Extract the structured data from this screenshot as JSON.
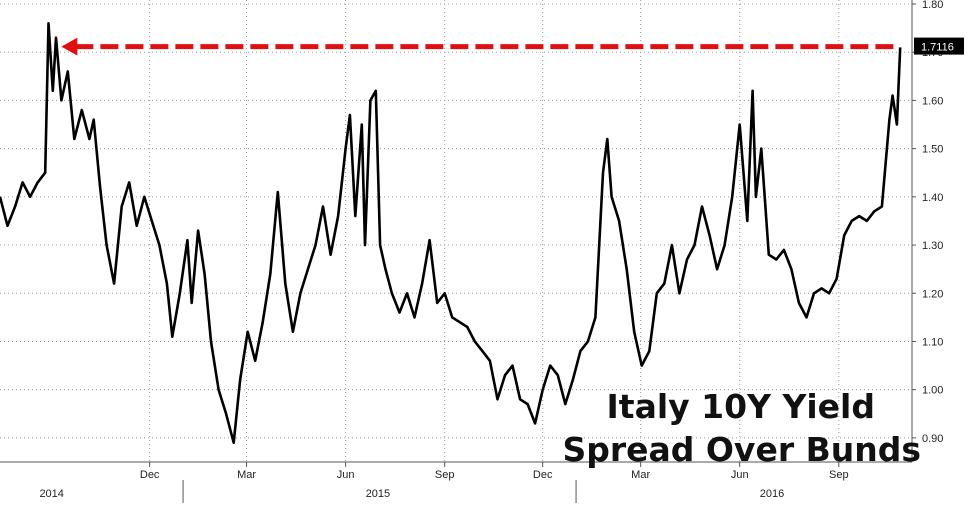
{
  "chart_data": {
    "type": "line",
    "series": [
      {
        "values": [
          [
            "2014-07-15",
            1.4
          ],
          [
            "2014-07-22",
            1.34
          ],
          [
            "2014-07-29",
            1.38
          ],
          [
            "2014-08-05",
            1.43
          ],
          [
            "2014-08-12",
            1.4
          ],
          [
            "2014-08-19",
            1.43
          ],
          [
            "2014-08-26",
            1.45
          ],
          [
            "2014-08-29",
            1.76
          ],
          [
            "2014-09-02",
            1.62
          ],
          [
            "2014-09-05",
            1.73
          ],
          [
            "2014-09-10",
            1.6
          ],
          [
            "2014-09-16",
            1.66
          ],
          [
            "2014-09-22",
            1.52
          ],
          [
            "2014-09-29",
            1.58
          ],
          [
            "2014-10-06",
            1.52
          ],
          [
            "2014-10-10",
            1.56
          ],
          [
            "2014-10-16",
            1.42
          ],
          [
            "2014-10-22",
            1.3
          ],
          [
            "2014-10-29",
            1.22
          ],
          [
            "2014-11-05",
            1.38
          ],
          [
            "2014-11-12",
            1.43
          ],
          [
            "2014-11-19",
            1.34
          ],
          [
            "2014-11-26",
            1.4
          ],
          [
            "2014-12-03",
            1.35
          ],
          [
            "2014-12-10",
            1.3
          ],
          [
            "2014-12-17",
            1.22
          ],
          [
            "2014-12-22",
            1.11
          ],
          [
            "2014-12-29",
            1.2
          ],
          [
            "2015-01-05",
            1.31
          ],
          [
            "2015-01-09",
            1.18
          ],
          [
            "2015-01-15",
            1.33
          ],
          [
            "2015-01-21",
            1.24
          ],
          [
            "2015-01-27",
            1.1
          ],
          [
            "2015-02-03",
            1.0
          ],
          [
            "2015-02-10",
            0.95
          ],
          [
            "2015-02-17",
            0.89
          ],
          [
            "2015-02-23",
            1.02
          ],
          [
            "2015-03-02",
            1.12
          ],
          [
            "2015-03-09",
            1.06
          ],
          [
            "2015-03-16",
            1.14
          ],
          [
            "2015-03-23",
            1.24
          ],
          [
            "2015-03-30",
            1.41
          ],
          [
            "2015-04-06",
            1.22
          ],
          [
            "2015-04-13",
            1.12
          ],
          [
            "2015-04-20",
            1.2
          ],
          [
            "2015-04-27",
            1.25
          ],
          [
            "2015-05-04",
            1.3
          ],
          [
            "2015-05-11",
            1.38
          ],
          [
            "2015-05-18",
            1.28
          ],
          [
            "2015-05-25",
            1.36
          ],
          [
            "2015-06-01",
            1.5
          ],
          [
            "2015-06-05",
            1.57
          ],
          [
            "2015-06-10",
            1.36
          ],
          [
            "2015-06-16",
            1.55
          ],
          [
            "2015-06-19",
            1.3
          ],
          [
            "2015-06-24",
            1.6
          ],
          [
            "2015-06-29",
            1.62
          ],
          [
            "2015-07-03",
            1.3
          ],
          [
            "2015-07-08",
            1.25
          ],
          [
            "2015-07-14",
            1.2
          ],
          [
            "2015-07-21",
            1.16
          ],
          [
            "2015-07-28",
            1.2
          ],
          [
            "2015-08-04",
            1.15
          ],
          [
            "2015-08-11",
            1.22
          ],
          [
            "2015-08-18",
            1.31
          ],
          [
            "2015-08-25",
            1.18
          ],
          [
            "2015-09-01",
            1.2
          ],
          [
            "2015-09-08",
            1.15
          ],
          [
            "2015-09-15",
            1.14
          ],
          [
            "2015-09-22",
            1.13
          ],
          [
            "2015-09-29",
            1.1
          ],
          [
            "2015-10-06",
            1.08
          ],
          [
            "2015-10-13",
            1.06
          ],
          [
            "2015-10-20",
            0.98
          ],
          [
            "2015-10-27",
            1.03
          ],
          [
            "2015-11-03",
            1.05
          ],
          [
            "2015-11-10",
            0.98
          ],
          [
            "2015-11-17",
            0.97
          ],
          [
            "2015-11-24",
            0.93
          ],
          [
            "2015-12-01",
            1.0
          ],
          [
            "2015-12-08",
            1.05
          ],
          [
            "2015-12-15",
            1.03
          ],
          [
            "2015-12-22",
            0.97
          ],
          [
            "2015-12-29",
            1.02
          ],
          [
            "2016-01-05",
            1.08
          ],
          [
            "2016-01-12",
            1.1
          ],
          [
            "2016-01-19",
            1.15
          ],
          [
            "2016-01-26",
            1.45
          ],
          [
            "2016-01-30",
            1.52
          ],
          [
            "2016-02-03",
            1.4
          ],
          [
            "2016-02-10",
            1.35
          ],
          [
            "2016-02-17",
            1.25
          ],
          [
            "2016-02-24",
            1.12
          ],
          [
            "2016-03-02",
            1.05
          ],
          [
            "2016-03-09",
            1.08
          ],
          [
            "2016-03-16",
            1.2
          ],
          [
            "2016-03-23",
            1.22
          ],
          [
            "2016-03-30",
            1.3
          ],
          [
            "2016-04-06",
            1.2
          ],
          [
            "2016-04-13",
            1.27
          ],
          [
            "2016-04-20",
            1.3
          ],
          [
            "2016-04-27",
            1.38
          ],
          [
            "2016-05-04",
            1.32
          ],
          [
            "2016-05-11",
            1.25
          ],
          [
            "2016-05-18",
            1.3
          ],
          [
            "2016-05-25",
            1.4
          ],
          [
            "2016-06-01",
            1.55
          ],
          [
            "2016-06-08",
            1.35
          ],
          [
            "2016-06-13",
            1.62
          ],
          [
            "2016-06-16",
            1.4
          ],
          [
            "2016-06-21",
            1.5
          ],
          [
            "2016-06-28",
            1.28
          ],
          [
            "2016-07-05",
            1.27
          ],
          [
            "2016-07-12",
            1.29
          ],
          [
            "2016-07-19",
            1.25
          ],
          [
            "2016-07-26",
            1.18
          ],
          [
            "2016-08-02",
            1.15
          ],
          [
            "2016-08-09",
            1.2
          ],
          [
            "2016-08-16",
            1.21
          ],
          [
            "2016-08-23",
            1.2
          ],
          [
            "2016-08-30",
            1.23
          ],
          [
            "2016-09-06",
            1.32
          ],
          [
            "2016-09-13",
            1.35
          ],
          [
            "2016-09-20",
            1.36
          ],
          [
            "2016-09-27",
            1.35
          ],
          [
            "2016-10-04",
            1.37
          ],
          [
            "2016-10-11",
            1.38
          ],
          [
            "2016-10-18",
            1.56
          ],
          [
            "2016-10-21",
            1.61
          ],
          [
            "2016-10-25",
            1.55
          ],
          [
            "2016-10-28",
            1.71
          ]
        ]
      }
    ],
    "y_axis": {
      "position": "right",
      "min": 0.85,
      "max": 1.8,
      "ticks": [
        "0.90",
        "1.00",
        "1.10",
        "1.20",
        "1.30",
        "1.40",
        "1.50",
        "1.60",
        "1.70",
        "1.80"
      ]
    },
    "x_axis": {
      "min": "2014-07-15",
      "max": "2016-11-08",
      "month_ticks": [
        {
          "date": "2014-12-01",
          "label": "Dec"
        },
        {
          "date": "2015-03-01",
          "label": "Mar"
        },
        {
          "date": "2015-06-01",
          "label": "Jun"
        },
        {
          "date": "2015-09-01",
          "label": "Sep"
        },
        {
          "date": "2015-12-01",
          "label": "Dec"
        },
        {
          "date": "2016-03-01",
          "label": "Mar"
        },
        {
          "date": "2016-06-01",
          "label": "Jun"
        },
        {
          "date": "2016-09-01",
          "label": "Sep"
        }
      ],
      "year_labels": [
        {
          "center": "2014-09-01",
          "label": "2014"
        },
        {
          "center": "2015-07-01",
          "label": "2015"
        },
        {
          "center": "2016-07-01",
          "label": "2016"
        }
      ],
      "year_boundaries": [
        "2015-01-01",
        "2016-01-01"
      ]
    },
    "grid": true,
    "reference_line": {
      "value": 1.7116,
      "from": "2014-09-10",
      "to": "2016-10-28",
      "style": "dashed",
      "color": "#e01010",
      "arrow": "left"
    },
    "last_value_label": "1.7116",
    "annotation_lines": [
      "Italy 10Y Yield",
      "Spread Over Bunds"
    ]
  }
}
